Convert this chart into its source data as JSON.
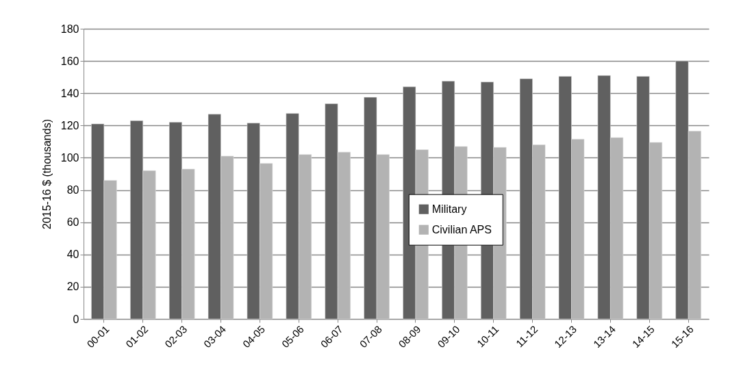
{
  "chart_data": {
    "type": "bar",
    "ylabel": "2015-16 $ (thousands)",
    "categories": [
      "00-01",
      "01-02",
      "02-03",
      "03-04",
      "04-05",
      "05-06",
      "06-07",
      "07-08",
      "08-09",
      "09-10",
      "10-11",
      "11-12",
      "12-13",
      "13-14",
      "14-15",
      "15-16"
    ],
    "series": [
      {
        "name": "Military",
        "color": "#606060",
        "values": [
          121,
          123,
          122,
          127,
          121.5,
          127.5,
          133.5,
          137.5,
          144,
          147.5,
          147,
          149,
          150.5,
          151,
          150.5,
          160
        ]
      },
      {
        "name": "Civilian APS",
        "color": "#b3b3b3",
        "values": [
          86,
          92,
          93,
          101,
          96.5,
          102,
          103.5,
          102,
          105,
          107,
          106.5,
          108,
          111.5,
          112.5,
          109.5,
          116.5
        ]
      }
    ],
    "ylim": [
      0,
      180
    ],
    "yticks": [
      0,
      20,
      40,
      60,
      80,
      100,
      120,
      140,
      160,
      180
    ],
    "grid": "y",
    "legend": "center"
  }
}
